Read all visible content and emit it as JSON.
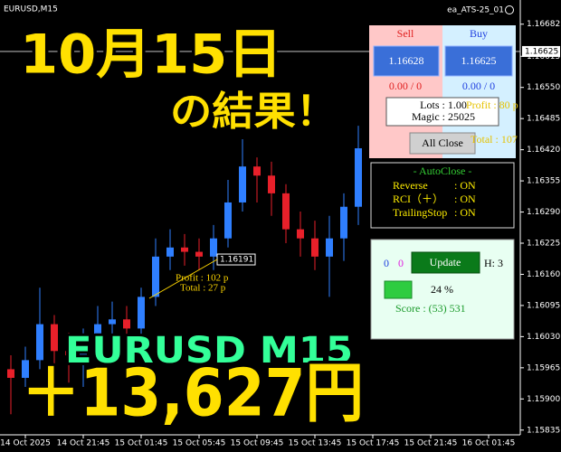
{
  "window": {
    "symbol_title": "EURUSD,M15",
    "ea_name": "ea_ATS-25_01"
  },
  "overlay": {
    "date": "10月15日",
    "result": "の結果！",
    "pair": "EURUSD M15",
    "profit": "＋13,627円"
  },
  "chart_data": {
    "type": "candlestick",
    "categories": [
      null,
      "14 Oct 2025",
      null,
      null,
      null,
      "14 Oct 21:45",
      null,
      null,
      null,
      "15 Oct 01:45",
      null,
      null,
      null,
      "15 Oct 05:45",
      null,
      null,
      null,
      "15 Oct 09:45",
      null,
      null,
      null,
      "15 Oct 13:45",
      null,
      null,
      null,
      "15 Oct 17:45",
      null,
      null,
      null,
      "15 Oct 21:45",
      null,
      null,
      null,
      "16 Oct 01:45"
    ],
    "open": [
      1.15962,
      1.15944,
      1.15981,
      1.16056,
      1.16,
      1.15991,
      1.16009,
      1.16056,
      1.16066,
      1.16047,
      1.16113,
      1.16197,
      1.16216,
      1.16207,
      1.16197,
      1.16235,
      1.1631,
      1.16385,
      1.16366,
      1.16329,
      1.16254,
      1.16235,
      1.16197,
      1.16235,
      1.16301,
      null,
      null,
      null,
      null,
      null,
      null,
      null,
      null,
      null
    ],
    "high": [
      1.15991,
      1.16009,
      1.16132,
      1.16075,
      1.16038,
      1.16047,
      1.16094,
      1.16103,
      1.16094,
      1.16132,
      1.16235,
      1.16254,
      1.16244,
      1.16235,
      1.16263,
      1.16357,
      1.16442,
      1.16404,
      1.16395,
      1.16348,
      1.16291,
      1.16272,
      1.16282,
      1.16329,
      1.1647,
      null,
      null,
      null,
      null,
      null,
      null,
      null,
      null,
      null
    ],
    "low": [
      1.15868,
      1.15925,
      1.15962,
      1.15953,
      1.15934,
      1.15925,
      1.15991,
      1.16028,
      1.16019,
      1.16028,
      1.16094,
      1.16169,
      1.16178,
      1.16169,
      1.16169,
      1.16216,
      1.16291,
      1.1631,
      1.16282,
      1.16225,
      1.16197,
      1.16169,
      1.16113,
      1.16188,
      1.16263,
      null,
      null,
      null,
      null,
      null,
      null,
      null,
      null,
      null
    ],
    "close": [
      1.15944,
      1.15981,
      1.16056,
      1.16,
      1.15991,
      1.16009,
      1.16056,
      1.16066,
      1.16047,
      1.16113,
      1.16197,
      1.16216,
      1.16207,
      1.16197,
      1.16235,
      1.1631,
      1.16385,
      1.16366,
      1.16329,
      1.16254,
      1.16235,
      1.16197,
      1.16235,
      1.16301,
      1.16423,
      null,
      null,
      null,
      null,
      null,
      null,
      null,
      null,
      null
    ],
    "up_color": "#2f7fff",
    "down_color": "#e8202a",
    "ylim": [
      1.15827,
      1.16723
    ],
    "yticks": [
      1.16682,
      1.16615,
      {
        "value": 1.1655,
        "label": "1.16550"
      },
      1.16485,
      {
        "value": 1.1642,
        "label": "1.16420"
      },
      1.16355,
      {
        "value": 1.1629,
        "label": "1.16290"
      },
      1.16225,
      {
        "value": 1.1616,
        "label": "1.16160"
      },
      1.16095,
      {
        "value": 1.1603,
        "label": "1.16030"
      },
      1.15965,
      {
        "value": 1.159,
        "label": "1.15900"
      },
      1.15835
    ],
    "current_price": 1.16625,
    "trade": {
      "price": 1.16191,
      "profit": "Profit : 102 p",
      "total": "Total : 27 p"
    }
  },
  "panel": {
    "sell": "Sell",
    "buy": "Buy",
    "sell_price": "1.16628",
    "buy_price": "1.16625",
    "sell_pos": "0.00 / 0",
    "buy_pos": "0.00 / 0",
    "lots": "Lots : 1.00",
    "magic": "Magic : 25025",
    "profit": "Profit : 80 p",
    "all_close": "All Close",
    "total": "Total : 107"
  },
  "autoclose": {
    "title": "- AutoClose -",
    "rows": [
      [
        "Reverse",
        ": ON"
      ],
      [
        "RCI（＋）",
        ": ON"
      ],
      [
        "TrailingStop",
        ": ON"
      ]
    ]
  },
  "status": {
    "count_a": "0",
    "count_b": "0",
    "update": "Update",
    "h": "H: 3",
    "percent": "24 %",
    "score": "Score : (53) 531"
  }
}
